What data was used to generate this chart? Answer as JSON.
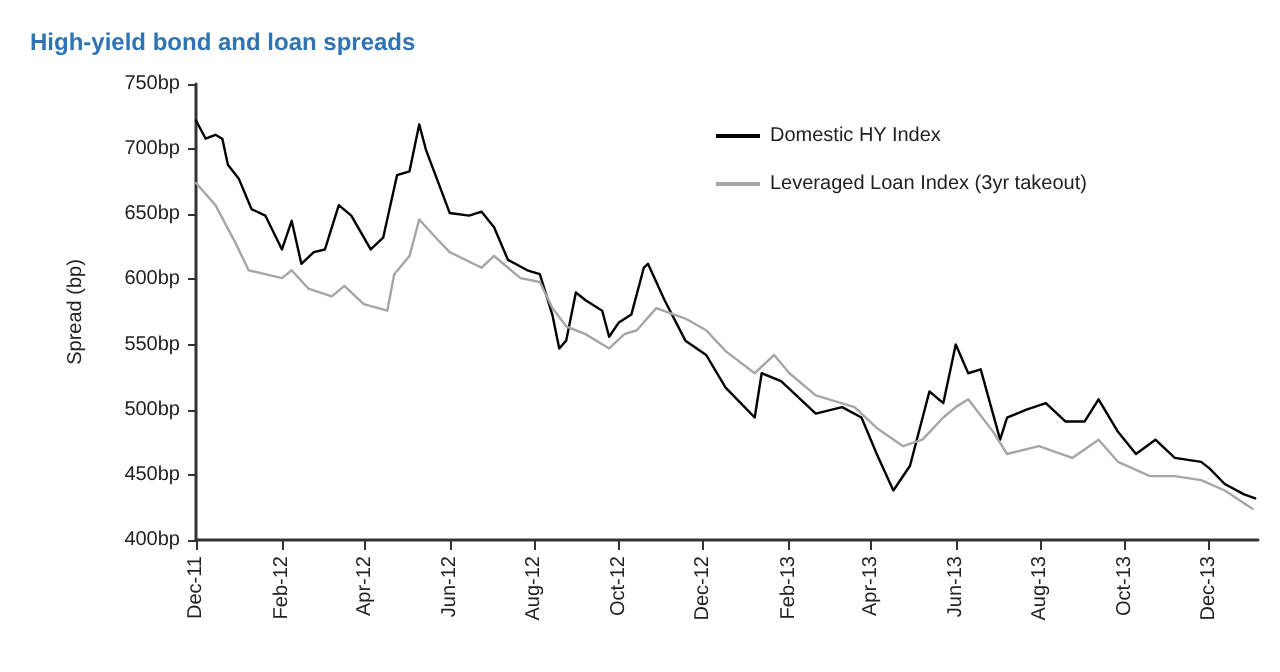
{
  "chart_data": {
    "type": "line",
    "title": "High-yield bond and loan spreads",
    "ylabel": "Spread (bp)",
    "xlim": [
      "2011-12-01",
      "2014-01-05"
    ],
    "xticks": [
      {
        "value": "2011-12-01",
        "label": "Dec-11"
      },
      {
        "value": "2012-02-01",
        "label": "Feb-12"
      },
      {
        "value": "2012-04-01",
        "label": "Apr-12"
      },
      {
        "value": "2012-06-01",
        "label": "Jun-12"
      },
      {
        "value": "2012-08-01",
        "label": "Aug-12"
      },
      {
        "value": "2012-10-01",
        "label": "Oct-12"
      },
      {
        "value": "2012-12-01",
        "label": "Dec-12"
      },
      {
        "value": "2013-02-01",
        "label": "Feb-13"
      },
      {
        "value": "2013-04-01",
        "label": "Apr-13"
      },
      {
        "value": "2013-06-01",
        "label": "Jun-13"
      },
      {
        "value": "2013-08-01",
        "label": "Aug-13"
      },
      {
        "value": "2013-10-01",
        "label": "Oct-13"
      },
      {
        "value": "2013-12-01",
        "label": "Dec-13"
      }
    ],
    "ylim": [
      400,
      750
    ],
    "yticks": [
      {
        "value": 400,
        "label": "400bp"
      },
      {
        "value": 450,
        "label": "450bp"
      },
      {
        "value": 500,
        "label": "500bp"
      },
      {
        "value": 550,
        "label": "550bp"
      },
      {
        "value": 600,
        "label": "600bp"
      },
      {
        "value": 650,
        "label": "650bp"
      },
      {
        "value": 700,
        "label": "700bp"
      },
      {
        "value": 750,
        "label": "750bp"
      }
    ],
    "grid": false,
    "legend": "top right",
    "marker": "none",
    "line_style": "solid",
    "series": [
      {
        "name": "Domestic HY Index",
        "color": "#000000",
        "x": [
          "2011-12-01",
          "2011-12-08",
          "2011-12-15",
          "2011-12-20",
          "2011-12-24",
          "2012-01-01",
          "2012-01-10",
          "2012-01-20",
          "2012-02-01",
          "2012-02-08",
          "2012-02-15",
          "2012-02-24",
          "2012-03-03",
          "2012-03-13",
          "2012-03-22",
          "2012-04-05",
          "2012-04-14",
          "2012-04-24",
          "2012-05-03",
          "2012-05-10",
          "2012-05-15",
          "2012-05-26",
          "2012-06-01",
          "2012-06-15",
          "2012-06-24",
          "2012-07-03",
          "2012-07-13",
          "2012-07-27",
          "2012-08-05",
          "2012-08-14",
          "2012-08-19",
          "2012-08-24",
          "2012-08-31",
          "2012-09-07",
          "2012-09-19",
          "2012-09-24",
          "2012-10-01",
          "2012-10-10",
          "2012-10-19",
          "2012-10-22",
          "2012-11-03",
          "2012-11-18",
          "2012-12-03",
          "2012-12-17",
          "2013-01-07",
          "2013-01-12",
          "2013-01-26",
          "2013-02-06",
          "2013-02-20",
          "2013-03-11",
          "2013-03-25",
          "2013-04-05",
          "2013-04-17",
          "2013-04-29",
          "2013-05-13",
          "2013-05-23",
          "2013-06-01",
          "2013-06-10",
          "2013-06-19",
          "2013-07-03",
          "2013-07-08",
          "2013-07-22",
          "2013-08-05",
          "2013-08-19",
          "2013-09-02",
          "2013-09-12",
          "2013-09-26",
          "2013-10-09",
          "2013-10-23",
          "2013-11-06",
          "2013-11-25",
          "2013-12-01",
          "2013-12-12",
          "2013-12-26",
          "2014-01-03"
        ],
        "values": [
          722,
          708,
          711,
          708,
          688,
          677,
          654,
          649,
          623,
          645,
          612,
          621,
          623,
          657,
          649,
          623,
          632,
          680,
          683,
          719,
          699,
          668,
          651,
          649,
          652,
          640,
          615,
          607,
          604,
          573,
          547,
          553,
          590,
          584,
          576,
          556,
          567,
          573,
          609,
          612,
          584,
          553,
          542,
          517,
          494,
          528,
          522,
          511,
          497,
          502,
          494,
          466,
          438,
          457,
          514,
          505,
          550,
          528,
          531,
          477,
          494,
          500,
          505,
          491,
          491,
          508,
          483,
          466,
          477,
          463,
          460,
          455,
          443,
          435,
          432
        ]
      },
      {
        "name": "Leveraged Loan Index (3yr takeout)",
        "color": "#a6a6a6",
        "x": [
          "2011-12-01",
          "2011-12-15",
          "2011-12-29",
          "2012-01-08",
          "2012-02-01",
          "2012-02-08",
          "2012-02-20",
          "2012-03-08",
          "2012-03-17",
          "2012-03-31",
          "2012-04-17",
          "2012-04-22",
          "2012-05-03",
          "2012-05-10",
          "2012-05-22",
          "2012-06-01",
          "2012-06-24",
          "2012-07-03",
          "2012-07-22",
          "2012-08-05",
          "2012-08-14",
          "2012-08-24",
          "2012-09-07",
          "2012-09-24",
          "2012-10-05",
          "2012-10-14",
          "2012-10-28",
          "2012-11-18",
          "2012-12-03",
          "2012-12-17",
          "2013-01-07",
          "2013-01-21",
          "2013-02-01",
          "2013-02-20",
          "2013-03-20",
          "2013-04-05",
          "2013-04-24",
          "2013-05-08",
          "2013-05-23",
          "2013-06-01",
          "2013-06-10",
          "2013-06-28",
          "2013-07-08",
          "2013-07-31",
          "2013-08-24",
          "2013-09-12",
          "2013-09-26",
          "2013-10-19",
          "2013-11-06",
          "2013-11-25",
          "2013-12-12",
          "2014-01-01"
        ],
        "values": [
          674,
          657,
          629,
          607,
          601,
          607,
          593,
          587,
          595,
          581,
          576,
          604,
          618,
          646,
          632,
          621,
          609,
          618,
          601,
          598,
          578,
          564,
          558,
          547,
          558,
          561,
          578,
          570,
          561,
          545,
          528,
          542,
          528,
          511,
          502,
          486,
          472,
          477,
          494,
          502,
          508,
          483,
          466,
          472,
          463,
          477,
          460,
          449,
          449,
          446,
          438,
          424
        ]
      }
    ]
  }
}
